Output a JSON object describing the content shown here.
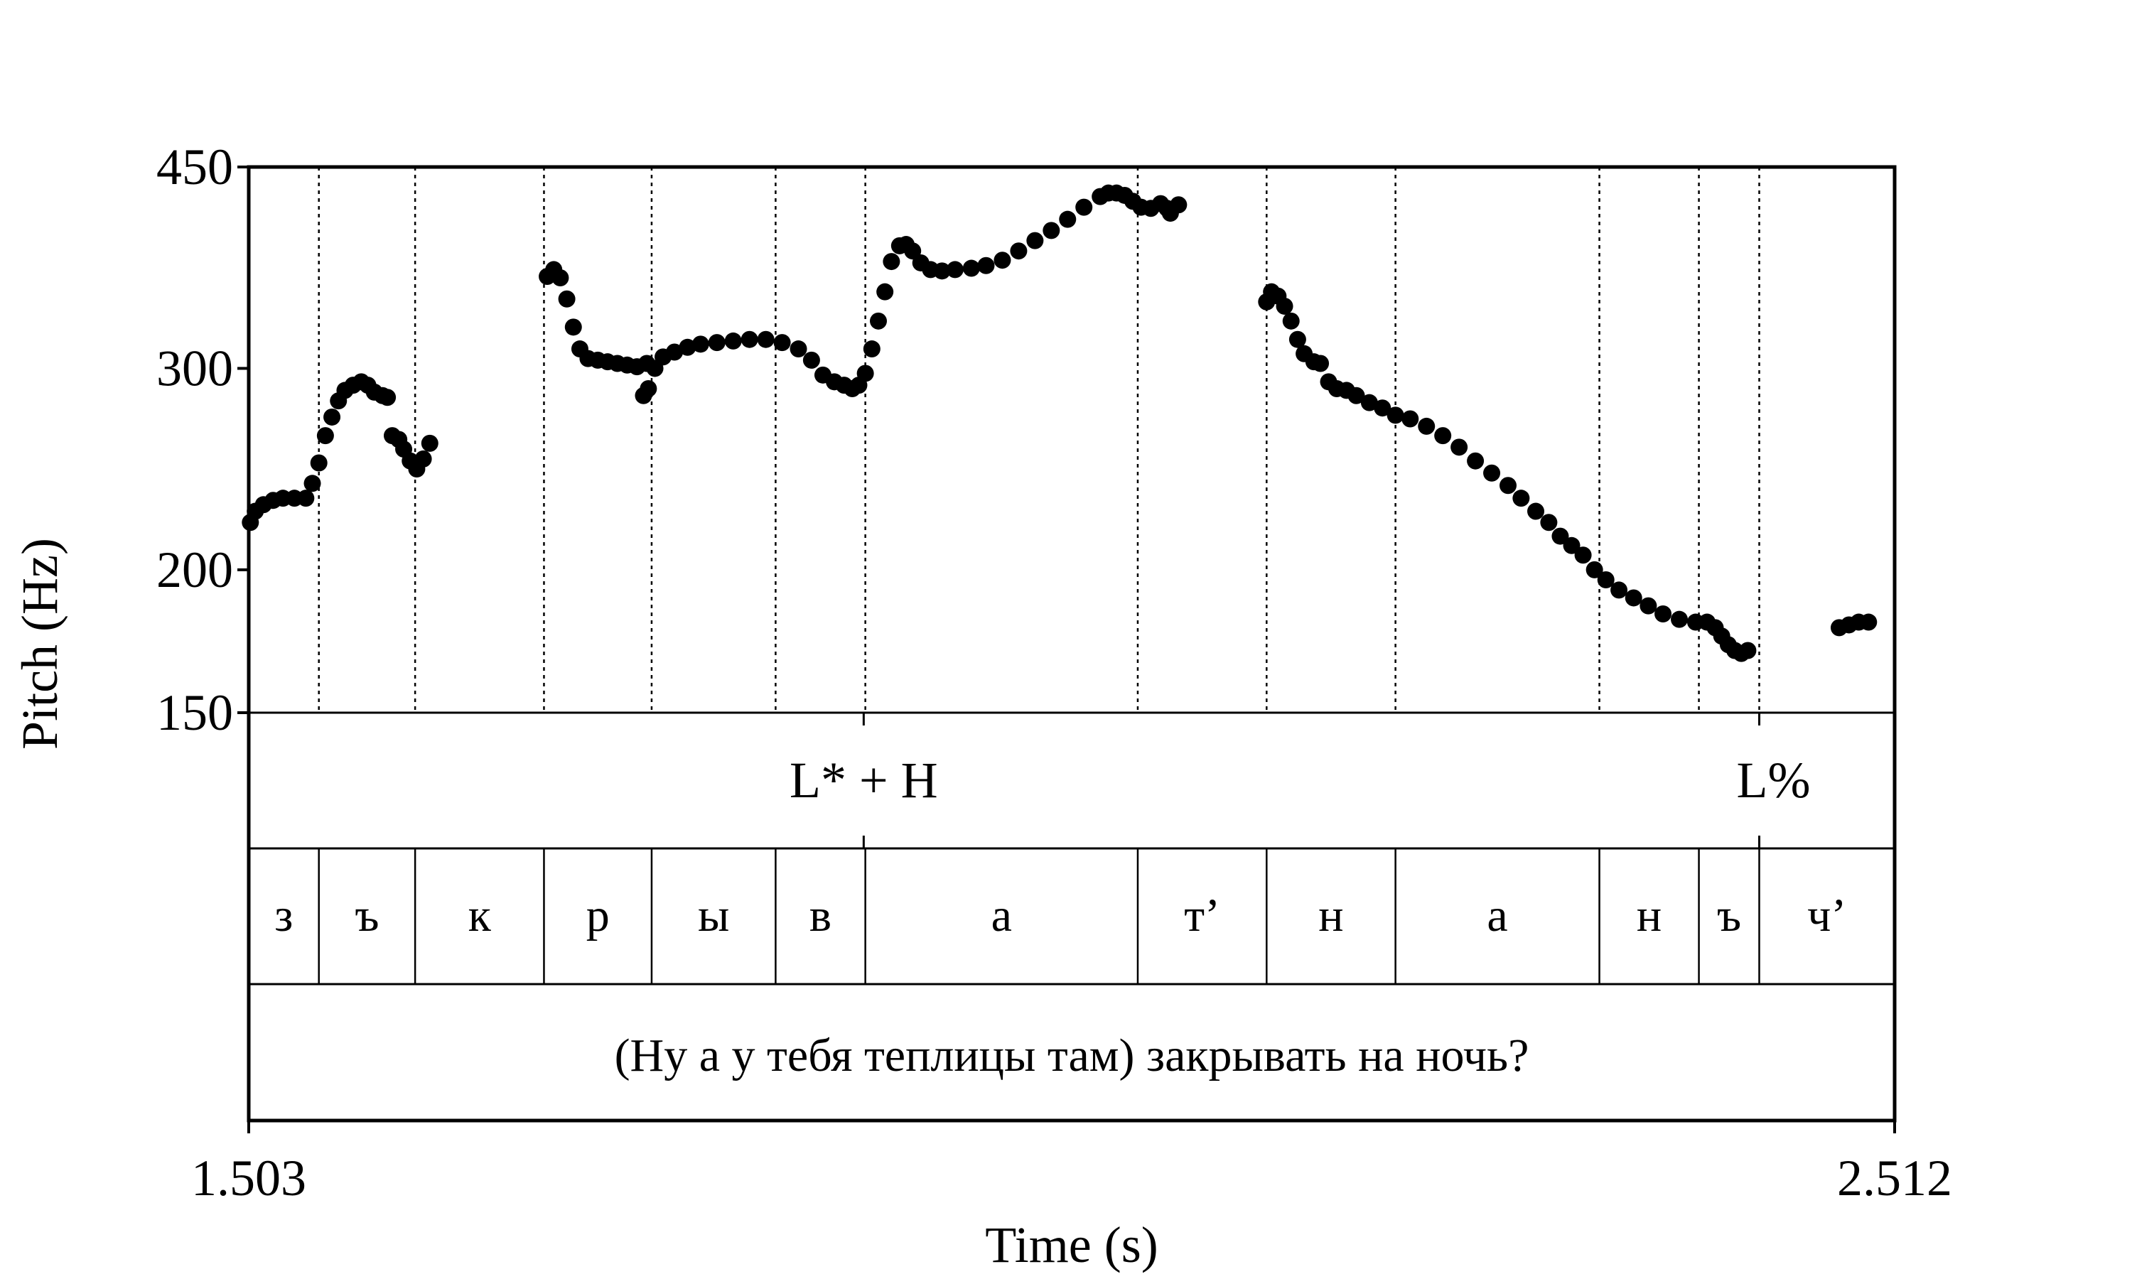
{
  "chart_data": {
    "type": "scatter",
    "ylabel": "Pitch (Hz)",
    "xlabel": "Time (s)",
    "ylim": [
      150,
      450
    ],
    "y_scale": "log",
    "yticks": [
      "450",
      "300",
      "200",
      "150"
    ],
    "xlim": [
      1.503,
      2.512
    ],
    "xticks": [
      "1.503",
      "2.512"
    ],
    "grid": "dotted vertical lines at segment boundaries",
    "tones": [
      {
        "label": "L* + H",
        "time": 1.88
      },
      {
        "label": "L%",
        "time": 2.429
      }
    ],
    "segment_boundaries": [
      1.503,
      1.546,
      1.605,
      1.684,
      1.75,
      1.826,
      1.881,
      2.048,
      2.127,
      2.206,
      2.331,
      2.392,
      2.429,
      2.512
    ],
    "segments": [
      "з",
      "ъ",
      "к",
      "р",
      "ы",
      "в",
      "а",
      "т’",
      "н",
      "а",
      "н",
      "ъ",
      "ч’"
    ],
    "sentence": "(Ну а у тебя теплицы там) закрывать на ночь?",
    "series": [
      {
        "points": [
          [
            1.504,
            220
          ],
          [
            1.507,
            225
          ],
          [
            1.512,
            228
          ],
          [
            1.518,
            230
          ],
          [
            1.524,
            231
          ],
          [
            1.531,
            231
          ],
          [
            1.538,
            231
          ],
          [
            1.542,
            238
          ],
          [
            1.546,
            248
          ],
          [
            1.55,
            262
          ],
          [
            1.554,
            272
          ],
          [
            1.558,
            281
          ],
          [
            1.562,
            287
          ],
          [
            1.567,
            290
          ],
          [
            1.572,
            292
          ],
          [
            1.576,
            290
          ],
          [
            1.58,
            286
          ],
          [
            1.585,
            284
          ],
          [
            1.588,
            283
          ],
          [
            1.591,
            262
          ],
          [
            1.595,
            260
          ],
          [
            1.598,
            255
          ],
          [
            1.602,
            249
          ],
          [
            1.606,
            245
          ],
          [
            1.61,
            250
          ],
          [
            1.614,
            258
          ],
          [
            1.686,
            361
          ],
          [
            1.69,
            366
          ],
          [
            1.694,
            360
          ],
          [
            1.698,
            345
          ],
          [
            1.702,
            326
          ],
          [
            1.706,
            312
          ],
          [
            1.711,
            306
          ],
          [
            1.717,
            305
          ],
          [
            1.723,
            304
          ],
          [
            1.729,
            303
          ],
          [
            1.735,
            302
          ],
          [
            1.741,
            301
          ],
          [
            1.747,
            303
          ],
          [
            1.745,
            284
          ],
          [
            1.748,
            288
          ],
          [
            1.752,
            300
          ],
          [
            1.757,
            307
          ],
          [
            1.764,
            310
          ],
          [
            1.772,
            313
          ],
          [
            1.78,
            315
          ],
          [
            1.79,
            316
          ],
          [
            1.8,
            317
          ],
          [
            1.81,
            318
          ],
          [
            1.82,
            318
          ],
          [
            1.83,
            316
          ],
          [
            1.84,
            312
          ],
          [
            1.848,
            305
          ],
          [
            1.855,
            296
          ],
          [
            1.862,
            292
          ],
          [
            1.868,
            290
          ],
          [
            1.873,
            288
          ],
          [
            1.877,
            290
          ],
          [
            1.881,
            297
          ],
          [
            1.885,
            312
          ],
          [
            1.889,
            330
          ],
          [
            1.893,
            350
          ],
          [
            1.897,
            372
          ],
          [
            1.902,
            384
          ],
          [
            1.906,
            385
          ],
          [
            1.91,
            380
          ],
          [
            1.915,
            371
          ],
          [
            1.921,
            366
          ],
          [
            1.928,
            365
          ],
          [
            1.936,
            366
          ],
          [
            1.946,
            367
          ],
          [
            1.955,
            369
          ],
          [
            1.965,
            373
          ],
          [
            1.975,
            380
          ],
          [
            1.985,
            388
          ],
          [
            1.995,
            396
          ],
          [
            2.005,
            405
          ],
          [
            2.015,
            415
          ],
          [
            2.025,
            424
          ],
          [
            2.03,
            427
          ],
          [
            2.035,
            427
          ],
          [
            2.04,
            425
          ],
          [
            2.045,
            420
          ],
          [
            2.05,
            415
          ],
          [
            2.056,
            414
          ],
          [
            2.062,
            418
          ],
          [
            2.066,
            414
          ],
          [
            2.068,
            410
          ],
          [
            2.073,
            417
          ],
          [
            2.127,
            343
          ],
          [
            2.13,
            350
          ],
          [
            2.134,
            347
          ],
          [
            2.138,
            340
          ],
          [
            2.142,
            330
          ],
          [
            2.146,
            318
          ],
          [
            2.15,
            309
          ],
          [
            2.156,
            304
          ],
          [
            2.16,
            303
          ],
          [
            2.165,
            292
          ],
          [
            2.17,
            288
          ],
          [
            2.176,
            287
          ],
          [
            2.182,
            284
          ],
          [
            2.19,
            280
          ],
          [
            2.198,
            277
          ],
          [
            2.206,
            273
          ],
          [
            2.215,
            271
          ],
          [
            2.225,
            267
          ],
          [
            2.235,
            262
          ],
          [
            2.245,
            256
          ],
          [
            2.255,
            249
          ],
          [
            2.265,
            243
          ],
          [
            2.275,
            237
          ],
          [
            2.283,
            231
          ],
          [
            2.292,
            225
          ],
          [
            2.3,
            220
          ],
          [
            2.307,
            214
          ],
          [
            2.314,
            210
          ],
          [
            2.321,
            206
          ],
          [
            2.328,
            200
          ],
          [
            2.335,
            196
          ],
          [
            2.343,
            192
          ],
          [
            2.352,
            189
          ],
          [
            2.361,
            186
          ],
          [
            2.37,
            183
          ],
          [
            2.38,
            181
          ],
          [
            2.39,
            180
          ],
          [
            2.397,
            180
          ],
          [
            2.402,
            178
          ],
          [
            2.406,
            175
          ],
          [
            2.41,
            172
          ],
          [
            2.414,
            170
          ],
          [
            2.418,
            169
          ],
          [
            2.422,
            170
          ],
          [
            2.478,
            178
          ],
          [
            2.484,
            179
          ],
          [
            2.49,
            180
          ],
          [
            2.496,
            180
          ]
        ]
      }
    ]
  }
}
